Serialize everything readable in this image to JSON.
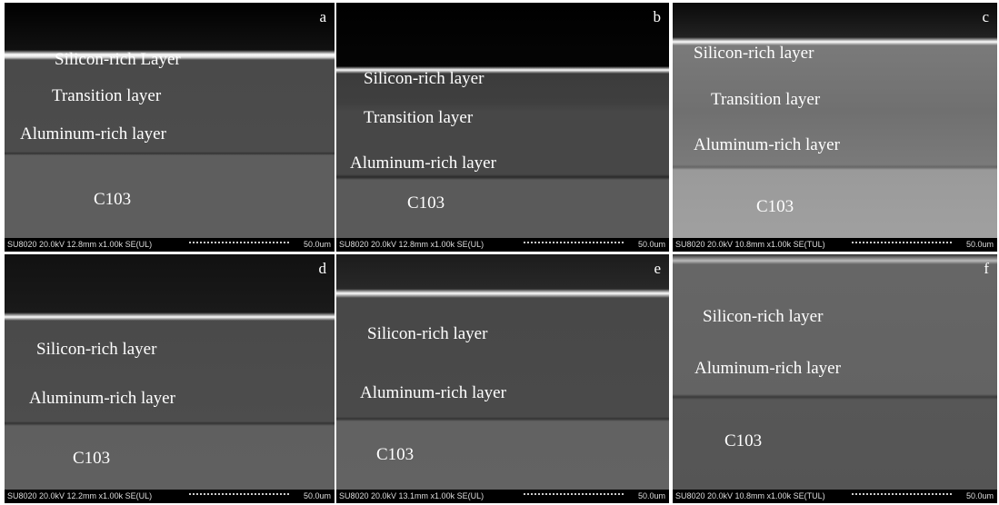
{
  "panels": [
    {
      "letter": "a",
      "labels": [
        "Silicon-rich Layer",
        "Transition layer",
        "Aluminum-rich layer",
        "C103"
      ],
      "info": "SU8020 20.0kV 12.8mm x1.00k SE(UL)",
      "scale": "50.0um"
    },
    {
      "letter": "b",
      "labels": [
        "Silicon-rich layer",
        "Transition layer",
        "Aluminum-rich layer",
        "C103"
      ],
      "info": "SU8020 20.0kV 12.8mm x1.00k SE(UL)",
      "scale": "50.0um"
    },
    {
      "letter": "c",
      "labels": [
        "Silicon-rich layer",
        "Transition layer",
        "Aluminum-rich layer",
        "C103"
      ],
      "info": "SU8020 20.0kV 10.8mm x1.00k SE(TUL)",
      "scale": "50.0um"
    },
    {
      "letter": "d",
      "labels": [
        "Silicon-rich layer",
        "Aluminum-rich layer",
        "C103"
      ],
      "info": "SU8020 20.0kV 12.2mm x1.00k SE(UL)",
      "scale": "50.0um"
    },
    {
      "letter": "e",
      "labels": [
        "Silicon-rich layer",
        "Aluminum-rich layer",
        "C103"
      ],
      "info": "SU8020 20.0kV 13.1mm x1.00k SE(UL)",
      "scale": "50.0um"
    },
    {
      "letter": "f",
      "labels": [
        "Silicon-rich layer",
        "Aluminum-rich layer",
        "C103"
      ],
      "info": "SU8020 20.0kV 10.8mm x1.00k SE(TUL)",
      "scale": "50.0um"
    }
  ]
}
